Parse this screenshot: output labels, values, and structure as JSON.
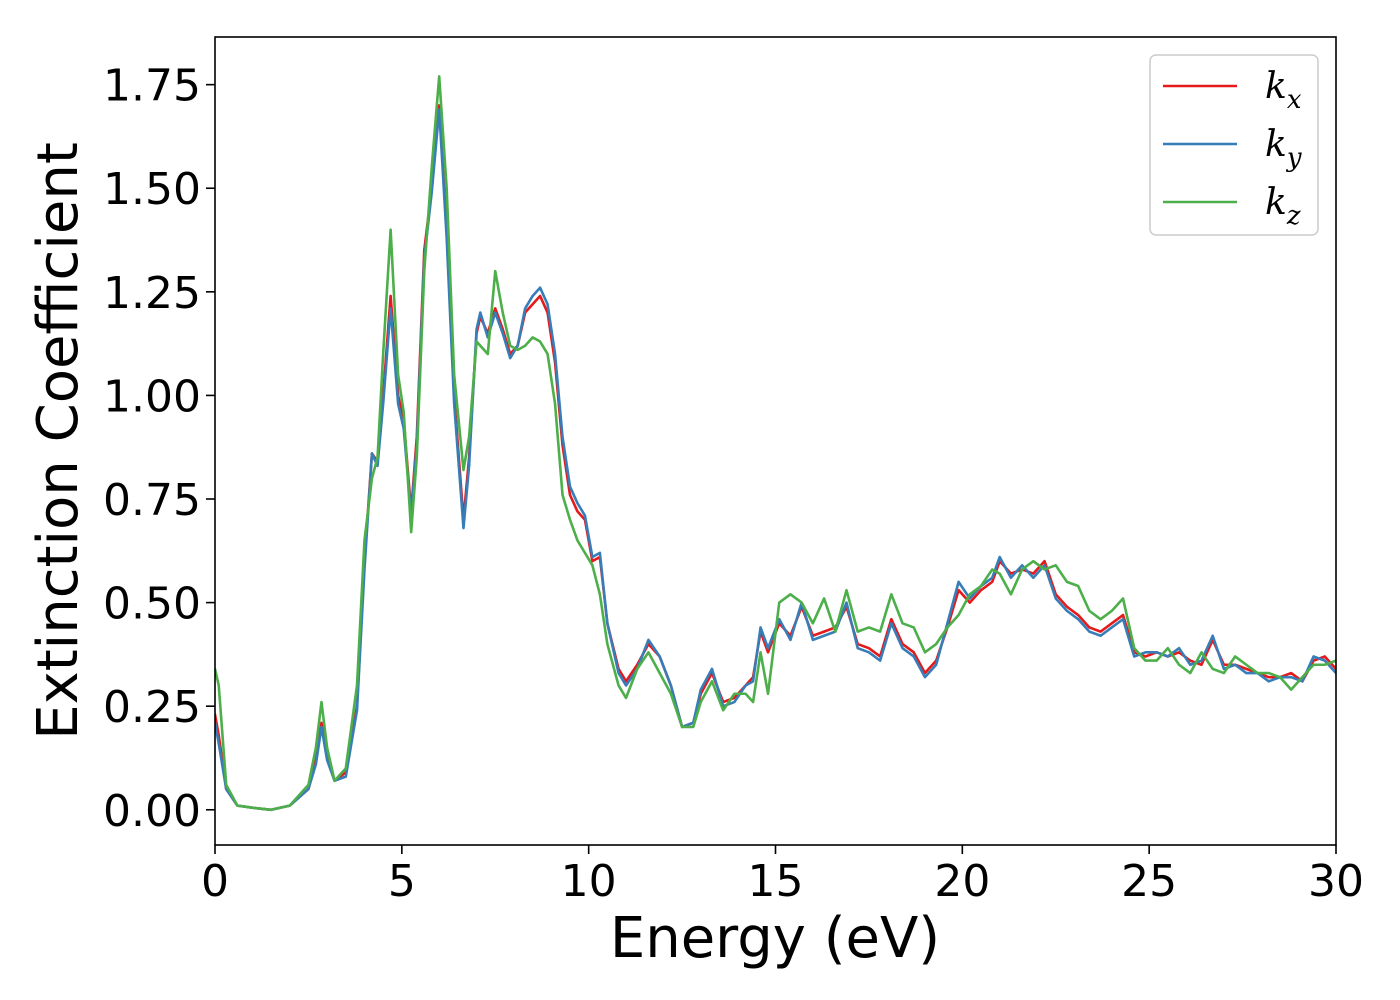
{
  "chart_data": {
    "type": "line",
    "title": "",
    "xlabel": "Energy (eV)",
    "ylabel": "Extinction Coefficient",
    "xlim": [
      0,
      30
    ],
    "ylim": [
      -0.085,
      1.865
    ],
    "xticks": [
      {
        "value": 0,
        "label": "0"
      },
      {
        "value": 5,
        "label": "5"
      },
      {
        "value": 10,
        "label": "10"
      },
      {
        "value": 15,
        "label": "15"
      },
      {
        "value": 20,
        "label": "20"
      },
      {
        "value": 25,
        "label": "25"
      },
      {
        "value": 30,
        "label": "30"
      }
    ],
    "yticks": [
      {
        "value": 0.0,
        "label": "0.00"
      },
      {
        "value": 0.25,
        "label": "0.25"
      },
      {
        "value": 0.5,
        "label": "0.50"
      },
      {
        "value": 0.75,
        "label": "0.75"
      },
      {
        "value": 1.0,
        "label": "1.00"
      },
      {
        "value": 1.25,
        "label": "1.25"
      },
      {
        "value": 1.5,
        "label": "1.50"
      },
      {
        "value": 1.75,
        "label": "1.75"
      }
    ],
    "grid": false,
    "legend_position": "top-right",
    "series": [
      {
        "name": "k",
        "subscript": "x",
        "color": "#e41a1c",
        "x": [
          0,
          0.1,
          0.3,
          0.6,
          1.0,
          1.5,
          2.0,
          2.5,
          2.7,
          2.85,
          3.0,
          3.2,
          3.5,
          3.8,
          4.0,
          4.2,
          4.35,
          4.5,
          4.7,
          4.9,
          5.05,
          5.25,
          5.4,
          5.6,
          5.8,
          6.0,
          6.2,
          6.4,
          6.65,
          6.8,
          7.0,
          7.1,
          7.3,
          7.5,
          7.7,
          7.9,
          8.1,
          8.3,
          8.5,
          8.7,
          8.9,
          9.1,
          9.3,
          9.5,
          9.7,
          9.9,
          10.1,
          10.3,
          10.5,
          10.8,
          11.0,
          11.3,
          11.6,
          11.9,
          12.2,
          12.5,
          12.8,
          13.0,
          13.3,
          13.6,
          13.9,
          14.2,
          14.4,
          14.6,
          14.8,
          15.1,
          15.4,
          15.7,
          16.0,
          16.3,
          16.6,
          16.9,
          17.2,
          17.5,
          17.8,
          18.1,
          18.4,
          18.7,
          19.0,
          19.3,
          19.6,
          19.9,
          20.2,
          20.5,
          20.8,
          21.0,
          21.3,
          21.6,
          21.9,
          22.2,
          22.5,
          22.8,
          23.1,
          23.4,
          23.7,
          24.0,
          24.3,
          24.6,
          24.9,
          25.2,
          25.5,
          25.8,
          26.1,
          26.4,
          26.7,
          27.0,
          27.3,
          27.6,
          27.9,
          28.2,
          28.5,
          28.8,
          29.1,
          29.4,
          29.7,
          30.0
        ],
        "y": [
          0.23,
          0.18,
          0.05,
          0.01,
          0.005,
          0.0,
          0.01,
          0.05,
          0.12,
          0.21,
          0.13,
          0.07,
          0.09,
          0.25,
          0.6,
          0.86,
          0.84,
          1.0,
          1.24,
          1.0,
          0.94,
          0.72,
          0.9,
          1.35,
          1.5,
          1.7,
          1.4,
          1.0,
          0.7,
          0.85,
          1.15,
          1.19,
          1.15,
          1.21,
          1.16,
          1.1,
          1.12,
          1.2,
          1.22,
          1.24,
          1.2,
          1.08,
          0.88,
          0.76,
          0.72,
          0.7,
          0.6,
          0.61,
          0.45,
          0.34,
          0.31,
          0.35,
          0.4,
          0.37,
          0.3,
          0.2,
          0.21,
          0.28,
          0.33,
          0.26,
          0.27,
          0.3,
          0.32,
          0.43,
          0.38,
          0.45,
          0.42,
          0.49,
          0.42,
          0.43,
          0.44,
          0.49,
          0.4,
          0.39,
          0.37,
          0.46,
          0.4,
          0.38,
          0.33,
          0.36,
          0.44,
          0.53,
          0.5,
          0.53,
          0.55,
          0.6,
          0.57,
          0.58,
          0.57,
          0.6,
          0.52,
          0.49,
          0.47,
          0.44,
          0.43,
          0.45,
          0.47,
          0.38,
          0.37,
          0.38,
          0.37,
          0.38,
          0.36,
          0.35,
          0.41,
          0.35,
          0.35,
          0.34,
          0.33,
          0.32,
          0.32,
          0.33,
          0.31,
          0.36,
          0.37,
          0.34
        ]
      },
      {
        "name": "k",
        "subscript": "y",
        "color": "#377eb8",
        "x": [
          0,
          0.1,
          0.3,
          0.6,
          1.0,
          1.5,
          2.0,
          2.5,
          2.7,
          2.85,
          3.0,
          3.2,
          3.5,
          3.8,
          4.0,
          4.2,
          4.35,
          4.5,
          4.7,
          4.9,
          5.05,
          5.25,
          5.4,
          5.6,
          5.8,
          6.0,
          6.2,
          6.4,
          6.65,
          6.8,
          7.0,
          7.1,
          7.3,
          7.5,
          7.7,
          7.9,
          8.1,
          8.3,
          8.5,
          8.7,
          8.9,
          9.1,
          9.3,
          9.5,
          9.7,
          9.9,
          10.1,
          10.3,
          10.5,
          10.8,
          11.0,
          11.3,
          11.6,
          11.9,
          12.2,
          12.5,
          12.8,
          13.0,
          13.3,
          13.6,
          13.9,
          14.2,
          14.4,
          14.6,
          14.8,
          15.1,
          15.4,
          15.7,
          16.0,
          16.3,
          16.6,
          16.9,
          17.2,
          17.5,
          17.8,
          18.1,
          18.4,
          18.7,
          19.0,
          19.3,
          19.6,
          19.9,
          20.2,
          20.5,
          20.8,
          21.0,
          21.3,
          21.6,
          21.9,
          22.2,
          22.5,
          22.8,
          23.1,
          23.4,
          23.7,
          24.0,
          24.3,
          24.6,
          24.9,
          25.2,
          25.5,
          25.8,
          26.1,
          26.4,
          26.7,
          27.0,
          27.3,
          27.6,
          27.9,
          28.2,
          28.5,
          28.8,
          29.1,
          29.4,
          29.7,
          30.0
        ],
        "y": [
          0.21,
          0.16,
          0.05,
          0.01,
          0.005,
          0.0,
          0.01,
          0.05,
          0.11,
          0.2,
          0.12,
          0.07,
          0.08,
          0.24,
          0.58,
          0.86,
          0.83,
          0.98,
          1.21,
          0.98,
          0.92,
          0.71,
          0.88,
          1.33,
          1.49,
          1.69,
          1.38,
          0.98,
          0.68,
          0.83,
          1.16,
          1.2,
          1.14,
          1.2,
          1.15,
          1.09,
          1.12,
          1.21,
          1.24,
          1.26,
          1.22,
          1.1,
          0.9,
          0.78,
          0.74,
          0.71,
          0.61,
          0.62,
          0.45,
          0.33,
          0.3,
          0.34,
          0.41,
          0.37,
          0.3,
          0.2,
          0.21,
          0.29,
          0.34,
          0.25,
          0.26,
          0.3,
          0.31,
          0.44,
          0.39,
          0.46,
          0.41,
          0.5,
          0.41,
          0.42,
          0.43,
          0.5,
          0.39,
          0.38,
          0.36,
          0.45,
          0.39,
          0.37,
          0.32,
          0.35,
          0.45,
          0.55,
          0.51,
          0.54,
          0.56,
          0.61,
          0.56,
          0.59,
          0.56,
          0.59,
          0.51,
          0.48,
          0.46,
          0.43,
          0.42,
          0.44,
          0.46,
          0.37,
          0.38,
          0.38,
          0.37,
          0.39,
          0.35,
          0.36,
          0.42,
          0.34,
          0.35,
          0.33,
          0.33,
          0.31,
          0.32,
          0.32,
          0.31,
          0.37,
          0.36,
          0.33
        ]
      },
      {
        "name": "k",
        "subscript": "z",
        "color": "#4daf4a",
        "x": [
          0,
          0.1,
          0.3,
          0.6,
          1.0,
          1.5,
          2.0,
          2.5,
          2.7,
          2.85,
          3.0,
          3.2,
          3.5,
          3.8,
          4.0,
          4.2,
          4.35,
          4.5,
          4.7,
          4.9,
          5.05,
          5.25,
          5.4,
          5.6,
          5.8,
          6.0,
          6.2,
          6.4,
          6.65,
          6.8,
          7.0,
          7.1,
          7.3,
          7.5,
          7.7,
          7.9,
          8.1,
          8.3,
          8.5,
          8.7,
          8.9,
          9.1,
          9.3,
          9.5,
          9.7,
          9.9,
          10.1,
          10.3,
          10.5,
          10.8,
          11.0,
          11.3,
          11.6,
          11.9,
          12.2,
          12.5,
          12.8,
          13.0,
          13.3,
          13.6,
          13.9,
          14.2,
          14.4,
          14.6,
          14.8,
          15.1,
          15.4,
          15.7,
          16.0,
          16.3,
          16.6,
          16.9,
          17.2,
          17.5,
          17.8,
          18.1,
          18.4,
          18.7,
          19.0,
          19.3,
          19.6,
          19.9,
          20.2,
          20.5,
          20.8,
          21.0,
          21.3,
          21.6,
          21.9,
          22.2,
          22.5,
          22.8,
          23.1,
          23.4,
          23.7,
          24.0,
          24.3,
          24.6,
          24.9,
          25.2,
          25.5,
          25.8,
          26.1,
          26.4,
          26.7,
          27.0,
          27.3,
          27.6,
          27.9,
          28.2,
          28.5,
          28.8,
          29.1,
          29.4,
          29.7,
          30.0
        ],
        "y": [
          0.34,
          0.3,
          0.06,
          0.01,
          0.005,
          0.0,
          0.01,
          0.06,
          0.15,
          0.26,
          0.15,
          0.07,
          0.1,
          0.3,
          0.65,
          0.8,
          0.85,
          1.1,
          1.4,
          1.05,
          0.96,
          0.67,
          0.85,
          1.3,
          1.55,
          1.77,
          1.5,
          1.05,
          0.82,
          0.9,
          1.13,
          1.12,
          1.1,
          1.3,
          1.2,
          1.12,
          1.11,
          1.12,
          1.14,
          1.13,
          1.1,
          0.98,
          0.76,
          0.7,
          0.65,
          0.62,
          0.59,
          0.52,
          0.4,
          0.3,
          0.27,
          0.34,
          0.38,
          0.33,
          0.28,
          0.2,
          0.2,
          0.26,
          0.31,
          0.24,
          0.28,
          0.28,
          0.26,
          0.38,
          0.28,
          0.5,
          0.52,
          0.5,
          0.45,
          0.51,
          0.43,
          0.53,
          0.43,
          0.44,
          0.43,
          0.52,
          0.45,
          0.44,
          0.38,
          0.4,
          0.44,
          0.47,
          0.52,
          0.54,
          0.58,
          0.57,
          0.52,
          0.58,
          0.6,
          0.58,
          0.59,
          0.55,
          0.54,
          0.48,
          0.46,
          0.48,
          0.51,
          0.39,
          0.36,
          0.36,
          0.39,
          0.35,
          0.33,
          0.38,
          0.34,
          0.33,
          0.37,
          0.35,
          0.33,
          0.33,
          0.32,
          0.29,
          0.32,
          0.35,
          0.35,
          0.36
        ]
      }
    ]
  }
}
